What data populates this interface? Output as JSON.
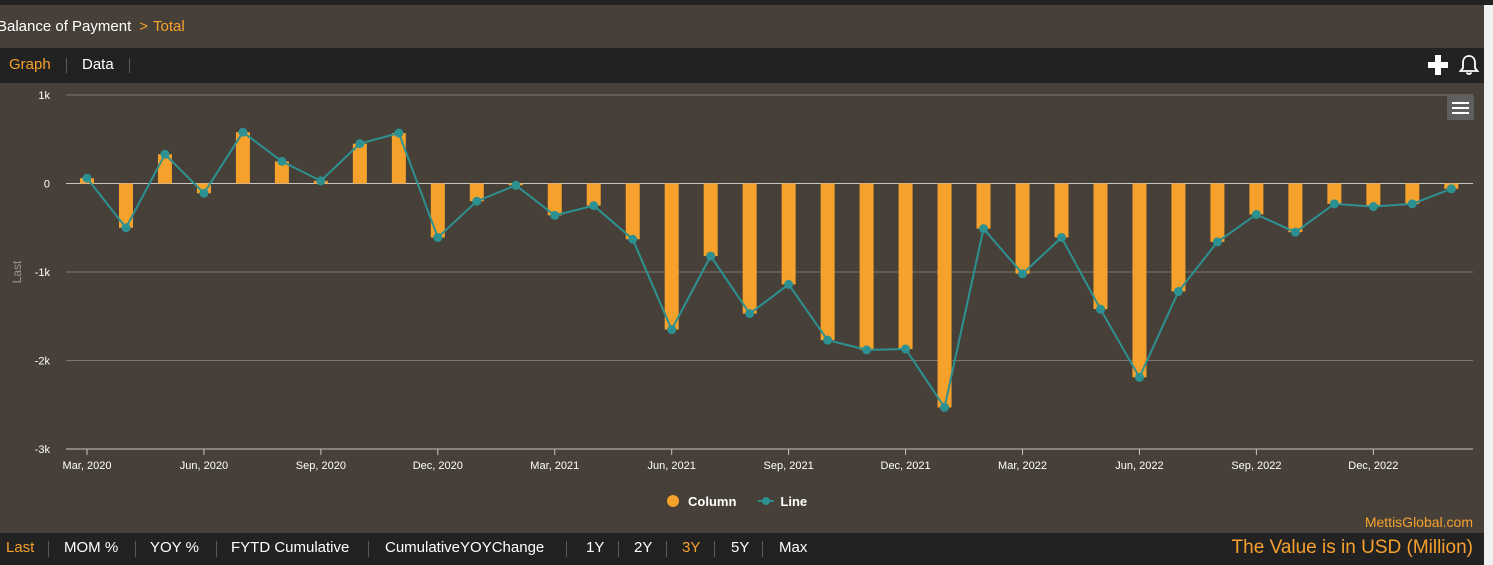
{
  "breadcrumb": {
    "root": "Balance of Payment",
    "separator": ">",
    "current": "Total"
  },
  "tabs": {
    "graph": "Graph",
    "data": "Data",
    "active": "graph"
  },
  "icons": {
    "add": "plus-icon",
    "alert": "bell-icon",
    "menu": "hamburger-menu-icon"
  },
  "colors": {
    "column": "#f5a12c",
    "line": "#2e9191",
    "background": "#474039",
    "bar": "#232222"
  },
  "legend": {
    "column": "Column",
    "line": "Line"
  },
  "credit": "MettisGlobal.com",
  "bottom": {
    "items": [
      "Last",
      "MOM %",
      "YOY %",
      "FYTD Cumulative",
      "CumulativeYOYChange",
      "1Y",
      "2Y",
      "3Y",
      "5Y",
      "Max"
    ],
    "active": [
      "Last",
      "3Y"
    ],
    "note": "The Value is in USD (Million)"
  },
  "chart_data": {
    "type": "bar",
    "ylabel": "Last",
    "ylim": [
      -3000,
      1000
    ],
    "yticks": [
      1000,
      0,
      -1000,
      -2000,
      -3000
    ],
    "ytick_labels": [
      "1k",
      "0",
      "-1k",
      "-2k",
      "-3k"
    ],
    "xtick_labels": [
      "Mar, 2020",
      "Jun, 2020",
      "Sep, 2020",
      "Dec, 2020",
      "Mar, 2021",
      "Jun, 2021",
      "Sep, 2021",
      "Dec, 2021",
      "Mar, 2022",
      "Jun, 2022",
      "Sep, 2022",
      "Dec, 2022"
    ],
    "grid": true,
    "legend_position": "bottom-center",
    "categories": [
      "Mar, 2020",
      "Apr, 2020",
      "May, 2020",
      "Jun, 2020",
      "Jul, 2020",
      "Aug, 2020",
      "Sep, 2020",
      "Oct, 2020",
      "Nov, 2020",
      "Dec, 2020",
      "Jan, 2021",
      "Feb, 2021",
      "Mar, 2021",
      "Apr, 2021",
      "May, 2021",
      "Jun, 2021",
      "Jul, 2021",
      "Aug, 2021",
      "Sep, 2021",
      "Oct, 2021",
      "Nov, 2021",
      "Dec, 2021",
      "Jan, 2022",
      "Feb, 2022",
      "Mar, 2022",
      "Apr, 2022",
      "May, 2022",
      "Jun, 2022",
      "Jul, 2022",
      "Aug, 2022",
      "Sep, 2022",
      "Oct, 2022",
      "Nov, 2022",
      "Dec, 2022",
      "Jan, 2023",
      "Feb, 2023"
    ],
    "series": [
      {
        "name": "Column",
        "type": "bar",
        "values": [
          60,
          -500,
          330,
          -110,
          580,
          250,
          30,
          450,
          570,
          -610,
          -200,
          -20,
          -360,
          -250,
          -630,
          -1650,
          -820,
          -1470,
          -1140,
          -1770,
          -1880,
          -1870,
          -2530,
          -510,
          -1020,
          -610,
          -1420,
          -2190,
          -1220,
          -660,
          -350,
          -550,
          -230,
          -260,
          -230,
          -60
        ]
      },
      {
        "name": "Line",
        "type": "line",
        "values": [
          60,
          -500,
          330,
          -110,
          580,
          250,
          30,
          450,
          570,
          -610,
          -200,
          -20,
          -360,
          -250,
          -630,
          -1650,
          -820,
          -1470,
          -1140,
          -1770,
          -1880,
          -1870,
          -2530,
          -510,
          -1020,
          -610,
          -1420,
          -2190,
          -1220,
          -660,
          -350,
          -550,
          -230,
          -260,
          -230,
          -60
        ]
      }
    ]
  }
}
